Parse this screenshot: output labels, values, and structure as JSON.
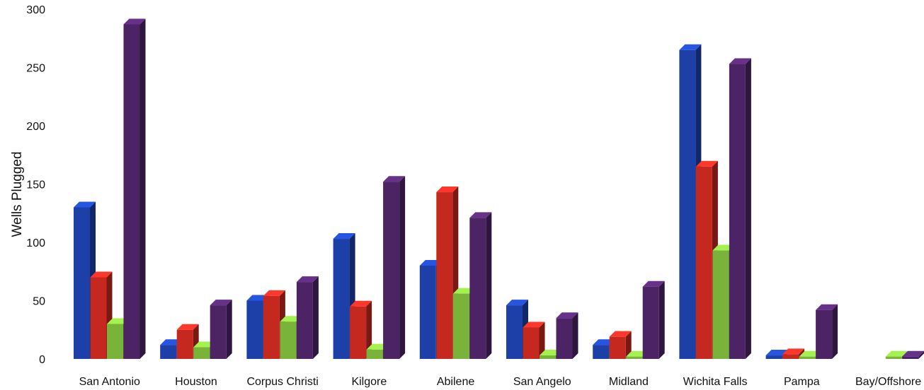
{
  "chart_data": {
    "type": "bar",
    "title": "",
    "xlabel": "",
    "ylabel": "Wells Plugged",
    "ylim": [
      0,
      300
    ],
    "yticks": [
      0,
      50,
      100,
      150,
      200,
      250,
      300
    ],
    "grid": false,
    "legend": "none",
    "categories": [
      "San Antonio",
      "Houston",
      "Corpus Christi",
      "Kilgore",
      "Abilene",
      "San Angelo",
      "Midland",
      "Wichita Falls",
      "Pampa",
      "Bay/Offshore"
    ],
    "series": [
      {
        "color": "#1c3fa8",
        "values": [
          130,
          12,
          50,
          103,
          80,
          46,
          12,
          265,
          3,
          0
        ]
      },
      {
        "color": "#c4281f",
        "values": [
          70,
          25,
          54,
          45,
          143,
          27,
          19,
          165,
          4,
          0
        ]
      },
      {
        "color": "#79b33a",
        "values": [
          30,
          10,
          32,
          8,
          56,
          3,
          2,
          93,
          2,
          2
        ]
      },
      {
        "color": "#4c2466",
        "values": [
          287,
          46,
          66,
          152,
          121,
          35,
          62,
          253,
          42,
          2
        ]
      }
    ]
  }
}
